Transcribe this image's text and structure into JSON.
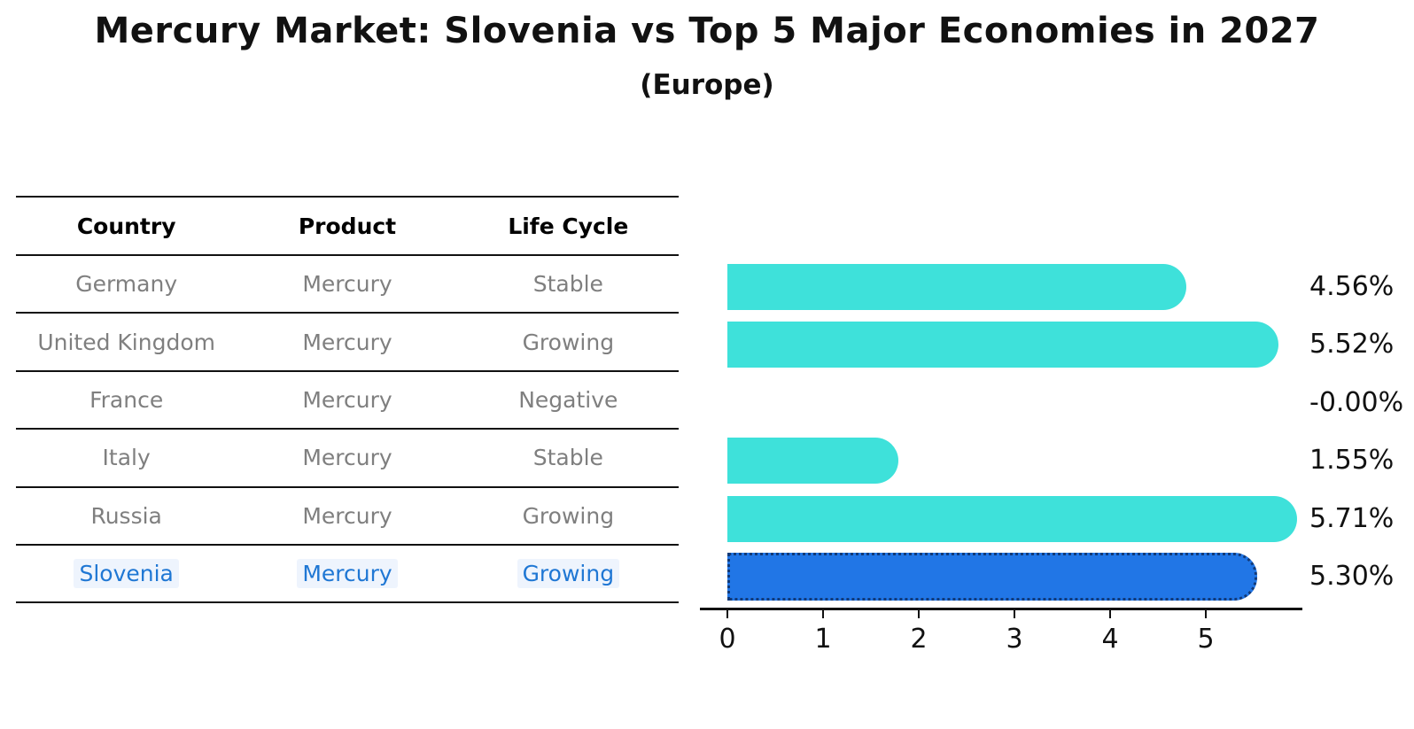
{
  "title": "Mercury Market: Slovenia vs Top 5 Major Economies in 2027",
  "subtitle": "(Europe)",
  "table": {
    "headers": [
      "Country",
      "Product",
      "Life Cycle"
    ],
    "rows": [
      {
        "country": "Germany",
        "product": "Mercury",
        "life_cycle": "Stable",
        "highlight": false
      },
      {
        "country": "United Kingdom",
        "product": "Mercury",
        "life_cycle": "Growing",
        "highlight": false
      },
      {
        "country": "France",
        "product": "Mercury",
        "life_cycle": "Negative",
        "highlight": false
      },
      {
        "country": "Italy",
        "product": "Mercury",
        "life_cycle": "Stable",
        "highlight": false
      },
      {
        "country": "Russia",
        "product": "Mercury",
        "life_cycle": "Growing",
        "highlight": false
      },
      {
        "country": "Slovenia",
        "product": "Mercury",
        "life_cycle": "Growing",
        "highlight": true
      }
    ]
  },
  "chart_data": {
    "type": "bar",
    "orientation": "horizontal",
    "title": "Mercury Market: Slovenia vs Top 5 Major Economies in 2027",
    "subtitle": "(Europe)",
    "categories": [
      "Germany",
      "United Kingdom",
      "France",
      "Italy",
      "Russia",
      "Slovenia"
    ],
    "values": [
      4.56,
      5.52,
      -0.0,
      1.55,
      5.71,
      5.3
    ],
    "value_labels": [
      "4.56%",
      "5.52%",
      "-0.00%",
      "1.55%",
      "5.71%",
      "5.30%"
    ],
    "x_ticks": [
      "0",
      "1",
      "2",
      "3",
      "4",
      "5"
    ],
    "xlim": [
      0,
      6
    ],
    "grid": false,
    "legend": false,
    "highlight_index": 5,
    "bar_color": "#3EE1DA",
    "highlight_bar_color": "#2176E6",
    "highlight_border_color": "#123A78"
  },
  "colors": {
    "row_text": "#7f7f7f",
    "header_text": "#000000",
    "highlight_text": "#1F77D4",
    "axis": "#111111"
  }
}
